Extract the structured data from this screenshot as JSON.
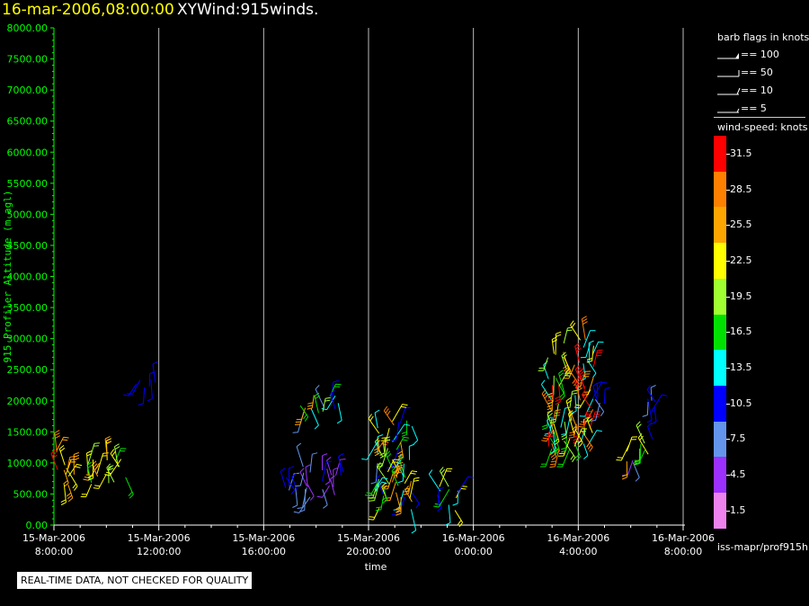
{
  "header": {
    "datetime": "16-mar-2006,08:00:00",
    "title": "XYWind:915winds."
  },
  "notice": "REAL-TIME DATA, NOT CHECKED FOR QUALITY",
  "legend": {
    "barb_title": "barb flags in knots",
    "barbs": [
      {
        "label": "== 100"
      },
      {
        "label": "== 50"
      },
      {
        "label": "== 10"
      },
      {
        "label": "== 5"
      }
    ],
    "speed_title": "wind-speed: knots",
    "speed_scale": [
      {
        "label": "31.5",
        "color": "#ff0000"
      },
      {
        "label": "28.5",
        "color": "#ff8000"
      },
      {
        "label": "25.5",
        "color": "#ffa500"
      },
      {
        "label": "22.5",
        "color": "#ffff00"
      },
      {
        "label": "19.5",
        "color": "#a0ff30"
      },
      {
        "label": "16.5",
        "color": "#00e000"
      },
      {
        "label": "13.5",
        "color": "#00ffff"
      },
      {
        "label": "10.5",
        "color": "#0000ff"
      },
      {
        "label": "7.5",
        "color": "#6495ed"
      },
      {
        "label": "4.5",
        "color": "#9b30ff"
      },
      {
        "label": "1.5",
        "color": "#ee82ee"
      }
    ],
    "footer": "iss-mapr/prof915h"
  },
  "chart_data": {
    "type": "scatter",
    "subtype": "wind-barb time-height plot",
    "ylabel": "915 Profiler Altitude (m agl)",
    "xlabel": "time",
    "ylim": [
      0,
      8000
    ],
    "yticks": [
      "0.00",
      "500.00",
      "1000.00",
      "1500.00",
      "2000.00",
      "2500.00",
      "3000.00",
      "3500.00",
      "4000.00",
      "4500.00",
      "5000.00",
      "5500.00",
      "6000.00",
      "6500.00",
      "7000.00",
      "7500.00",
      "8000.00"
    ],
    "xlim_hours": [
      0,
      24
    ],
    "xticks": [
      {
        "hour": 0,
        "date": "15-Mar-2006",
        "time": "8:00:00"
      },
      {
        "hour": 4,
        "date": "15-Mar-2006",
        "time": "12:00:00"
      },
      {
        "hour": 8,
        "date": "15-Mar-2006",
        "time": "16:00:00"
      },
      {
        "hour": 12,
        "date": "15-Mar-2006",
        "time": "20:00:00"
      },
      {
        "hour": 16,
        "date": "16-Mar-2006",
        "time": "0:00:00"
      },
      {
        "hour": 20,
        "date": "16-Mar-2006",
        "time": "4:00:00"
      },
      {
        "hour": 24,
        "date": "16-Mar-2006",
        "time": "8:00:00"
      }
    ],
    "grid": "vertical lines at x ticks",
    "clusters": [
      {
        "t0": 0.05,
        "t1": 0.8,
        "h0": 600,
        "h1": 1250,
        "speed": [
          22,
          31
        ]
      },
      {
        "t0": 1.3,
        "t1": 2.9,
        "h0": 650,
        "h1": 1100,
        "speed": [
          15,
          28
        ]
      },
      {
        "t0": 3.1,
        "t1": 3.9,
        "h0": 2200,
        "h1": 2380,
        "speed": [
          9,
          12
        ]
      },
      {
        "t0": 8.8,
        "t1": 9.3,
        "h0": 550,
        "h1": 850,
        "speed": [
          7,
          12
        ]
      },
      {
        "t0": 9.4,
        "t1": 10.9,
        "h0": 1750,
        "h1": 2100,
        "speed": [
          4,
          30
        ]
      },
      {
        "t0": 9.5,
        "t1": 11.1,
        "h0": 450,
        "h1": 950,
        "speed": [
          3,
          10
        ]
      },
      {
        "t0": 12.2,
        "t1": 13.7,
        "h0": 250,
        "h1": 1750,
        "speed": [
          8,
          28
        ]
      },
      {
        "t0": 14.6,
        "t1": 15.6,
        "h0": 230,
        "h1": 650,
        "speed": [
          9,
          24
        ]
      },
      {
        "t0": 18.8,
        "t1": 20.6,
        "h0": 1200,
        "h1": 3000,
        "speed": [
          12,
          33
        ]
      },
      {
        "t0": 20.5,
        "t1": 21.0,
        "h0": 1950,
        "h1": 2100,
        "speed": [
          8,
          12
        ]
      },
      {
        "t0": 21.8,
        "t1": 22.9,
        "h0": 1000,
        "h1": 1400,
        "speed": [
          3,
          25
        ]
      },
      {
        "t0": 22.6,
        "t1": 23.0,
        "h0": 1800,
        "h1": 2100,
        "speed": [
          7,
          11
        ]
      }
    ]
  }
}
